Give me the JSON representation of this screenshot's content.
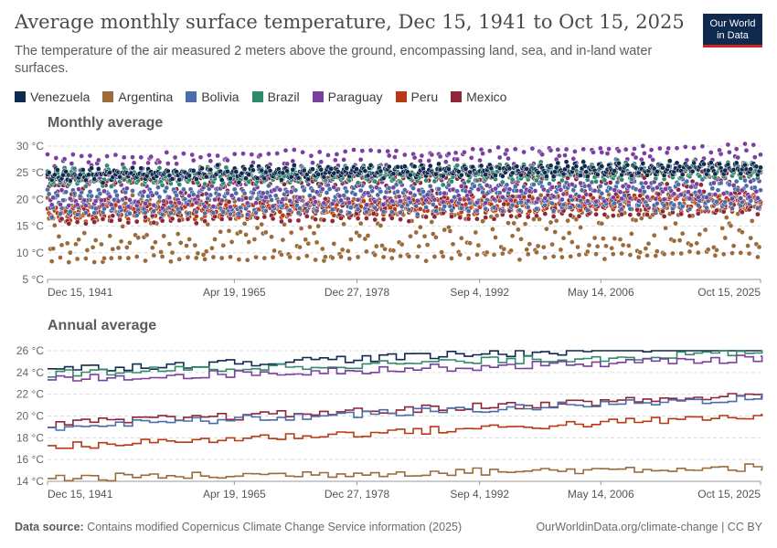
{
  "header": {
    "title": "Average monthly surface temperature, Dec 15, 1941 to Oct 15, 2025",
    "subtitle": "The temperature of the air measured 2 meters above the ground, encompassing land, sea, and in-land water surfaces.",
    "logo_line1": "Our World",
    "logo_line2": "in Data"
  },
  "colors": {
    "Venezuela": "#0f2a4e",
    "Argentina": "#9a6b3b",
    "Bolivia": "#4a6ca8",
    "Brazil": "#2f8a6a",
    "Paraguay": "#7b3f9e",
    "Peru": "#b83a14",
    "Mexico": "#8c2638"
  },
  "chart_data": [
    {
      "type": "scatter",
      "title": "Monthly average",
      "ylim": [
        5,
        30
      ],
      "y_ticks": [
        "5 °C",
        "10 °C",
        "15 °C",
        "20 °C",
        "25 °C",
        "30 °C"
      ],
      "x_ticks": [
        "Dec 15, 1941",
        "Apr 19, 1965",
        "Dec 27, 1978",
        "Sep 4, 1992",
        "May 14, 2006",
        "Oct 15, 2025"
      ],
      "xlim": [
        1941.96,
        2025.79
      ],
      "grid": true,
      "series": [
        {
          "name": "Venezuela",
          "mean_start": 24.6,
          "mean_end": 25.9,
          "seasonal_amplitude": 0.8,
          "min": 22.8,
          "max": 27.5
        },
        {
          "name": "Argentina",
          "mean_start": 14.3,
          "mean_end": 15.3,
          "seasonal_amplitude": 5.8,
          "min": 5,
          "max": 22.5
        },
        {
          "name": "Bolivia",
          "mean_start": 19.4,
          "mean_end": 21.0,
          "seasonal_amplitude": 2.2,
          "min": 15,
          "max": 24.5
        },
        {
          "name": "Brazil",
          "mean_start": 24.1,
          "mean_end": 25.6,
          "seasonal_amplitude": 1.3,
          "min": 21.5,
          "max": 27.5
        },
        {
          "name": "Paraguay",
          "mean_start": 23.4,
          "mean_end": 25.2,
          "seasonal_amplitude": 4.8,
          "min": 16,
          "max": 30.5
        },
        {
          "name": "Peru",
          "mean_start": 17.3,
          "mean_end": 19.6,
          "seasonal_amplitude": 1.2,
          "min": 15,
          "max": 21.5
        },
        {
          "name": "Mexico",
          "mean_start": 19.7,
          "mean_end": 21.6,
          "seasonal_amplitude": 4.2,
          "min": 14,
          "max": 26
        }
      ]
    },
    {
      "type": "line",
      "title": "Annual average",
      "ylim": [
        14,
        26
      ],
      "y_ticks": [
        "14 °C",
        "16 °C",
        "18 °C",
        "20 °C",
        "22 °C",
        "24 °C",
        "26 °C"
      ],
      "x_ticks": [
        "Dec 15, 1941",
        "Apr 19, 1965",
        "Dec 27, 1978",
        "Sep 4, 1992",
        "May 14, 2006",
        "Oct 15, 2025"
      ],
      "xlim": [
        1941.96,
        2025.79
      ],
      "grid": true,
      "series": [
        {
          "name": "Venezuela",
          "start": 24.3,
          "end": 26.6
        },
        {
          "name": "Brazil",
          "start": 23.9,
          "end": 25.8
        },
        {
          "name": "Paraguay",
          "start": 23.4,
          "end": 25.3
        },
        {
          "name": "Mexico",
          "start": 19.3,
          "end": 21.9
        },
        {
          "name": "Bolivia",
          "start": 19.0,
          "end": 21.7
        },
        {
          "name": "Peru",
          "start": 17.2,
          "end": 20.0
        },
        {
          "name": "Argentina",
          "start": 14.3,
          "end": 15.3
        }
      ]
    }
  ],
  "legend": [
    "Venezuela",
    "Argentina",
    "Bolivia",
    "Brazil",
    "Paraguay",
    "Peru",
    "Mexico"
  ],
  "footer": {
    "source_label": "Data source:",
    "source_text": "Contains modified Copernicus Climate Change Service information (2025)",
    "credit": "OurWorldinData.org/climate-change | CC BY"
  }
}
